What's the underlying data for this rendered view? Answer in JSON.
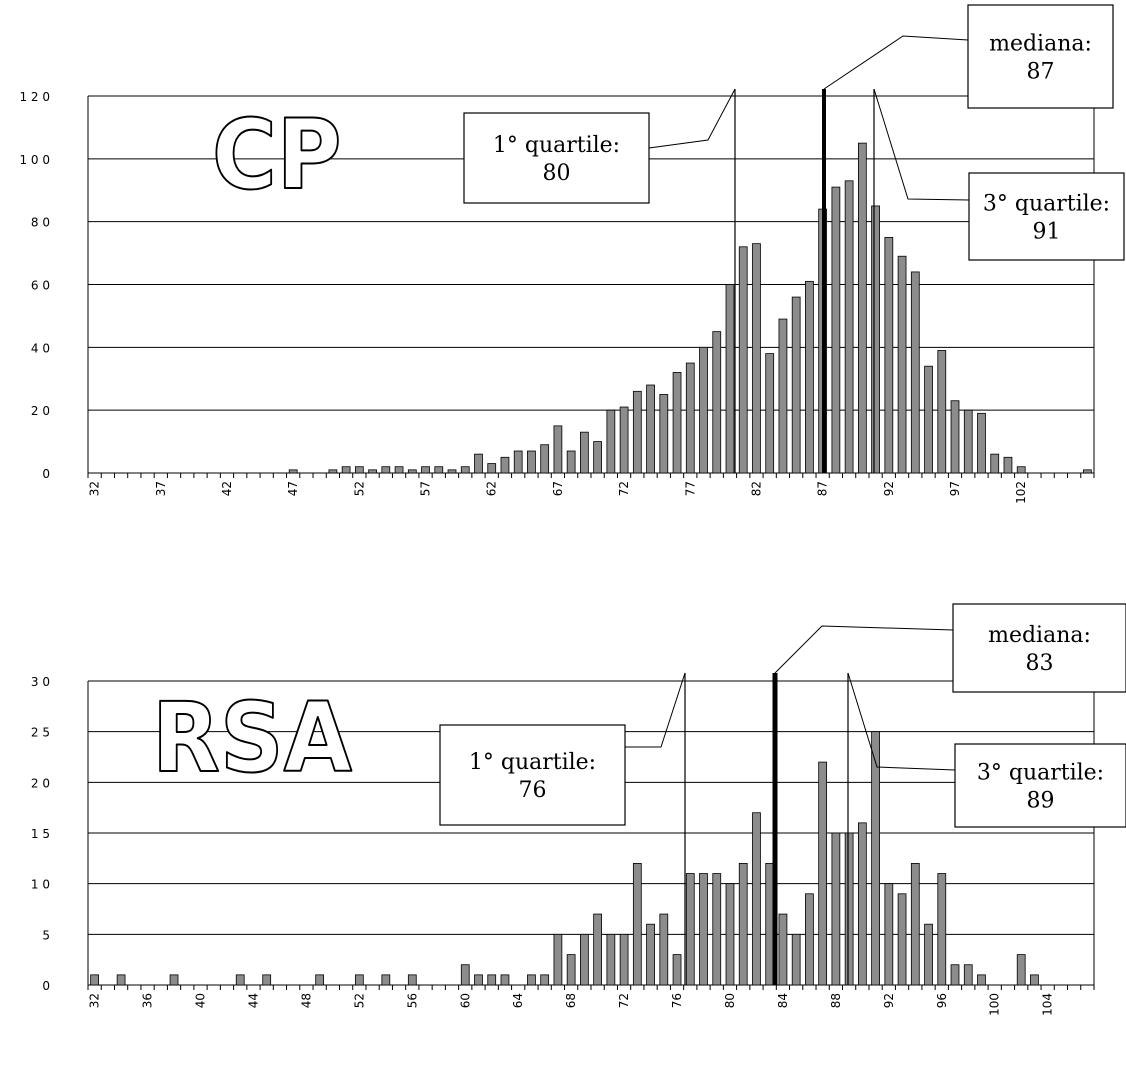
{
  "chart_data": [
    {
      "type": "bar",
      "title": "CP",
      "x_start": 32,
      "x_end": 107,
      "x_tick_labels": [
        "32",
        "37",
        "42",
        "47",
        "52",
        "57",
        "62",
        "67",
        "72",
        "77",
        "82",
        "87",
        "92",
        "97",
        "102"
      ],
      "ylim": [
        0,
        120
      ],
      "y_tick_labels": [
        "0",
        "2 0",
        "4 0",
        "6 0",
        "8 0",
        "1 0 0",
        "1 2 0"
      ],
      "values": [
        0,
        0,
        0,
        0,
        0,
        0,
        0,
        0,
        0,
        0,
        0,
        0,
        0,
        0,
        0,
        1,
        0,
        0,
        1,
        2,
        2,
        1,
        2,
        2,
        1,
        2,
        2,
        1,
        2,
        6,
        3,
        5,
        7,
        7,
        9,
        15,
        7,
        13,
        10,
        20,
        21,
        26,
        28,
        25,
        32,
        35,
        40,
        45,
        60,
        72,
        73,
        38,
        49,
        56,
        61,
        84,
        91,
        93,
        105,
        85,
        75,
        69,
        64,
        34,
        39,
        23,
        20,
        19,
        6,
        5,
        2,
        0,
        0,
        0,
        0,
        1
      ],
      "grid": true,
      "annotations": [
        {
          "label": "1° quartile:",
          "value": "80",
          "x": 80.5
        },
        {
          "label": "mediana:",
          "value": "87",
          "x": 87.0
        },
        {
          "label": "3° quartile:",
          "value": "91",
          "x": 91.0
        }
      ]
    },
    {
      "type": "bar",
      "title": "RSA",
      "x_start": 32,
      "x_end": 107,
      "x_tick_labels": [
        "32",
        "36",
        "40",
        "44",
        "48",
        "52",
        "56",
        "60",
        "64",
        "68",
        "72",
        "76",
        "80",
        "84",
        "88",
        "92",
        "96",
        "100",
        "104"
      ],
      "ylim": [
        0,
        30
      ],
      "y_tick_labels": [
        "0",
        "5",
        "1 0",
        "1 5",
        "2 0",
        "2 5",
        "3 0"
      ],
      "values": [
        1,
        0,
        1,
        0,
        0,
        0,
        1,
        0,
        0,
        0,
        0,
        1,
        0,
        1,
        0,
        0,
        0,
        1,
        0,
        0,
        1,
        0,
        1,
        0,
        1,
        0,
        0,
        0,
        2,
        1,
        1,
        1,
        0,
        1,
        1,
        5,
        3,
        5,
        7,
        5,
        5,
        12,
        6,
        7,
        3,
        11,
        11,
        11,
        10,
        12,
        17,
        12,
        7,
        5,
        9,
        22,
        15,
        15,
        16,
        25,
        10,
        9,
        12,
        6,
        11,
        2,
        2,
        1,
        0,
        0,
        3,
        1,
        0,
        0,
        0,
        0
      ],
      "grid": true,
      "annotations": [
        {
          "label": "1° quartile:",
          "value": "76",
          "x": 76.5
        },
        {
          "label": "mediana:",
          "value": "83",
          "x": 83.0
        },
        {
          "label": "3° quartile:",
          "value": "89",
          "x": 89.0
        }
      ]
    }
  ],
  "colors": {
    "bar_fill": "#8c8c8c",
    "bar_stroke": "#000000",
    "grid": "#000000",
    "text": "#000000",
    "background": "#ffffff"
  }
}
